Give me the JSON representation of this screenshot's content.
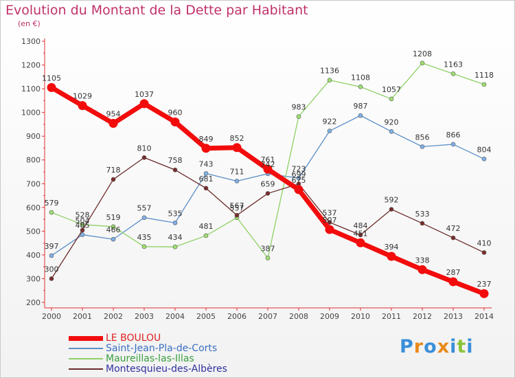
{
  "title": "Evolution du Montant de la Dette par Habitant",
  "subtitle": "(en €)",
  "logo": {
    "letters": [
      "P",
      "r",
      "o",
      "x",
      "i",
      "t",
      "i"
    ],
    "colors": [
      "#3a8fd8",
      "#e88a1a",
      "#3a8fd8",
      "#e88a1a",
      "#3a8fd8",
      "#8ac43a",
      "#3a8fd8"
    ]
  },
  "chart_data": {
    "type": "line",
    "x": [
      "2000",
      "2001",
      "2002",
      "2003",
      "2004",
      "2005",
      "2006",
      "2007",
      "2008",
      "2009",
      "2010",
      "2011",
      "2012",
      "2013",
      "2014"
    ],
    "ylim": [
      200,
      1300
    ],
    "yticks": [
      200,
      300,
      400,
      500,
      600,
      700,
      800,
      900,
      1000,
      1100,
      1200,
      1300
    ],
    "grid": false,
    "legend_position": "bottom",
    "series": [
      {
        "name": "Saint-Jean-Pla-de-Corts",
        "color": "#5b8fc7",
        "width": 1.3,
        "marker": "#7fb0e8",
        "values": [
          397,
          485,
          466,
          557,
          535,
          743,
          711,
          742,
          723,
          922,
          987,
          920,
          856,
          866,
          804
        ]
      },
      {
        "name": "Maureillas-las-Illas",
        "color": "#8ed065",
        "width": 1.3,
        "marker": "#9ee070",
        "values": [
          579,
          528,
          519,
          435,
          434,
          481,
          557,
          387,
          983,
          1136,
          1108,
          1057,
          1208,
          1163,
          1118
        ]
      },
      {
        "name": "Montesquieu-des-Albères",
        "color": "#6b2a2a",
        "width": 1.3,
        "marker": "#7a2c2c",
        "values": [
          300,
          504,
          718,
          810,
          758,
          681,
          567,
          659,
          699,
          537,
          484,
          592,
          533,
          472,
          410
        ]
      },
      {
        "name": "LE BOULOU",
        "color": "#f20c0c",
        "width": 7,
        "marker": "#f20c0c",
        "values": [
          1105,
          1029,
          954,
          1037,
          960,
          849,
          852,
          761,
          675,
          507,
          451,
          394,
          338,
          287,
          237
        ]
      }
    ],
    "legend_order": [
      "LE BOULOU",
      "Saint-Jean-Pla-de-Corts",
      "Maureillas-las-Illas",
      "Montesquieu-des-Albères"
    ]
  }
}
